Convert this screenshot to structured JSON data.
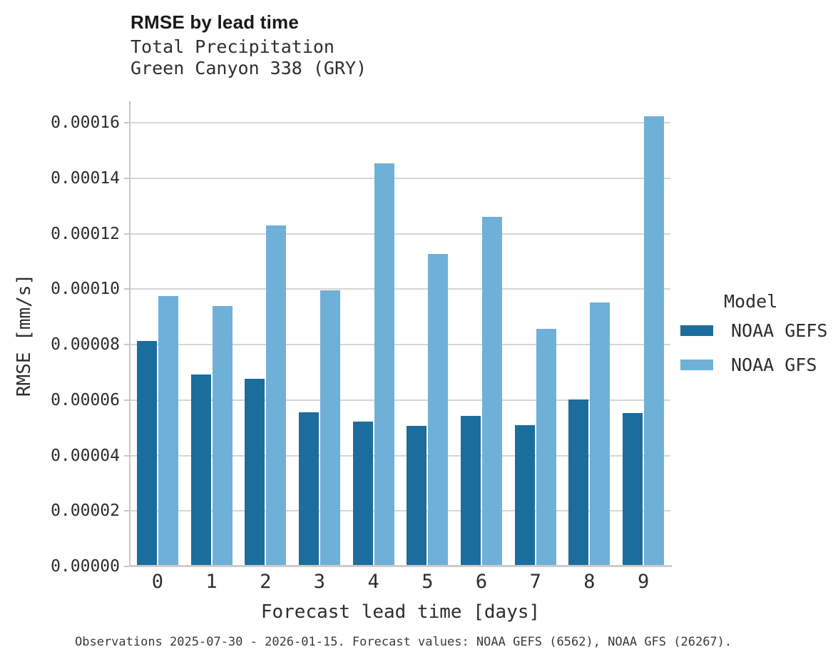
{
  "header": {
    "title": "RMSE by lead time",
    "subtitle1": "Total Precipitation",
    "subtitle2": "Green Canyon 338 (GRY)"
  },
  "chart_data": {
    "type": "bar",
    "title": "RMSE by lead time",
    "subtitle": [
      "Total Precipitation",
      "Green Canyon 338 (GRY)"
    ],
    "categories": [
      "0",
      "1",
      "2",
      "3",
      "4",
      "5",
      "6",
      "7",
      "8",
      "9"
    ],
    "series": [
      {
        "name": "NOAA GEFS",
        "color": "#1b6d9e",
        "values": [
          8.13e-05,
          6.92e-05,
          6.78e-05,
          5.56e-05,
          5.23e-05,
          5.07e-05,
          5.43e-05,
          5.1e-05,
          6.01e-05,
          5.53e-05
        ]
      },
      {
        "name": "NOAA GFS",
        "color": "#6fb0d9",
        "values": [
          9.76e-05,
          9.4e-05,
          0.000123,
          9.95e-05,
          0.0001454,
          0.0001128,
          0.0001261,
          8.57e-05,
          9.52e-05,
          0.0001623
        ]
      }
    ],
    "xlabel": "Forecast lead time [days]",
    "ylabel": "RMSE [mm/s]",
    "ylim": [
      0,
      0.000167
    ],
    "yticks": [
      0,
      2e-05,
      4e-05,
      6e-05,
      8e-05,
      0.0001,
      0.00012,
      0.00014,
      0.00016
    ],
    "ytick_labels": [
      "0.00000",
      "0.00002",
      "0.00004",
      "0.00006",
      "0.00008",
      "0.00010",
      "0.00012",
      "0.00014",
      "0.00016"
    ],
    "grid": true,
    "legend_title": "Model",
    "legend_position": "right"
  },
  "footnote": "Observations 2025-07-30 - 2026-01-15. Forecast values: NOAA GEFS (6562), NOAA GFS (26267)."
}
